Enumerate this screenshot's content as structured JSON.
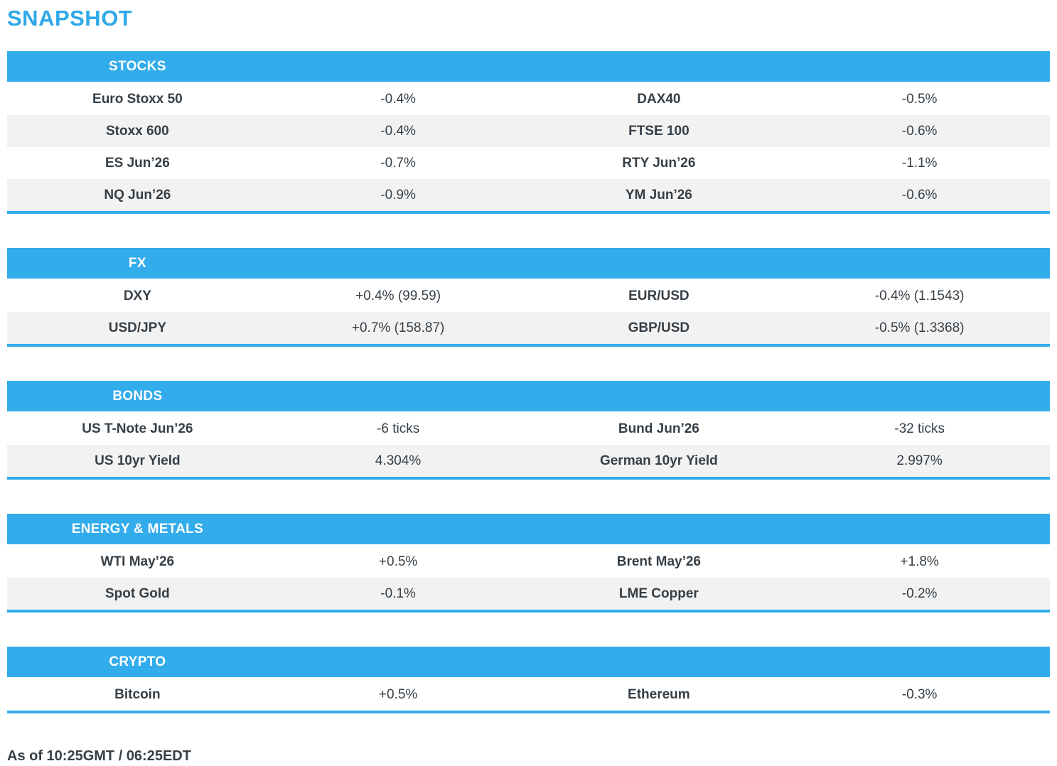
{
  "page_title": "SNAPSHOT",
  "footer": {
    "timestamp": "As of 10:25GMT / 06:25EDT"
  },
  "colors": {
    "accent_blue": "#33ACEC",
    "title_blue": "#2FA9E8",
    "row_alt": "#F2F2F2",
    "text": "#363F47"
  },
  "sections": [
    {
      "title": "STOCKS",
      "rows": [
        [
          "Euro Stoxx 50",
          "-0.4%",
          "DAX40",
          "-0.5%"
        ],
        [
          "Stoxx 600",
          "-0.4%",
          "FTSE 100",
          "-0.6%"
        ],
        [
          "ES Jun’26",
          "-0.7%",
          "RTY Jun’26",
          "-1.1%"
        ],
        [
          "NQ Jun’26",
          "-0.9%",
          "YM Jun’26",
          "-0.6%"
        ]
      ]
    },
    {
      "title": "FX",
      "rows": [
        [
          "DXY",
          "+0.4% (99.59)",
          "EUR/USD",
          "-0.4% (1.1543)"
        ],
        [
          "USD/JPY",
          "+0.7% (158.87)",
          "GBP/USD",
          "-0.5% (1.3368)"
        ]
      ]
    },
    {
      "title": "BONDS",
      "rows": [
        [
          "US T-Note Jun’26",
          "-6 ticks",
          "Bund Jun’26",
          "-32 ticks"
        ],
        [
          "US 10yr Yield",
          "4.304%",
          "German 10yr Yield",
          "2.997%"
        ]
      ]
    },
    {
      "title": "ENERGY & METALS",
      "rows": [
        [
          "WTI May’26",
          "+0.5%",
          "Brent May’26",
          "+1.8%"
        ],
        [
          "Spot Gold",
          "-0.1%",
          "LME Copper",
          "-0.2%"
        ]
      ]
    },
    {
      "title": "CRYPTO",
      "rows": [
        [
          "Bitcoin",
          "+0.5%",
          "Ethereum",
          "-0.3%"
        ]
      ]
    }
  ]
}
